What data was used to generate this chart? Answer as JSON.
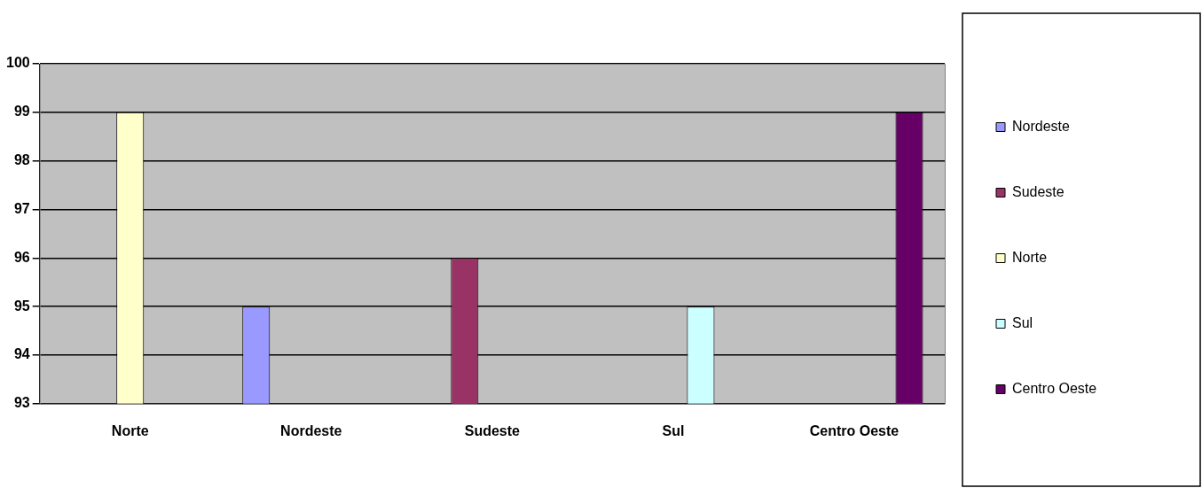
{
  "chart_data": {
    "type": "bar",
    "categories": [
      "Norte",
      "Nordeste",
      "Sudeste",
      "Sul",
      "Centro Oeste"
    ],
    "series": [
      {
        "name": "Nordeste",
        "color": "#9999ff",
        "values": [
          null,
          95,
          null,
          null,
          null
        ]
      },
      {
        "name": "Sudeste",
        "color": "#993366",
        "values": [
          null,
          null,
          96,
          null,
          null
        ]
      },
      {
        "name": "Norte",
        "color": "#ffffcc",
        "values": [
          99,
          null,
          null,
          null,
          null
        ]
      },
      {
        "name": "Sul",
        "color": "#ccffff",
        "values": [
          null,
          null,
          null,
          95,
          null
        ]
      },
      {
        "name": "Centro Oeste",
        "color": "#660066",
        "values": [
          null,
          null,
          null,
          null,
          99
        ]
      }
    ],
    "ylim": [
      93,
      100
    ],
    "yticks": [
      93,
      94,
      95,
      96,
      97,
      98,
      99,
      100
    ],
    "grid": "y",
    "legend": "right"
  }
}
